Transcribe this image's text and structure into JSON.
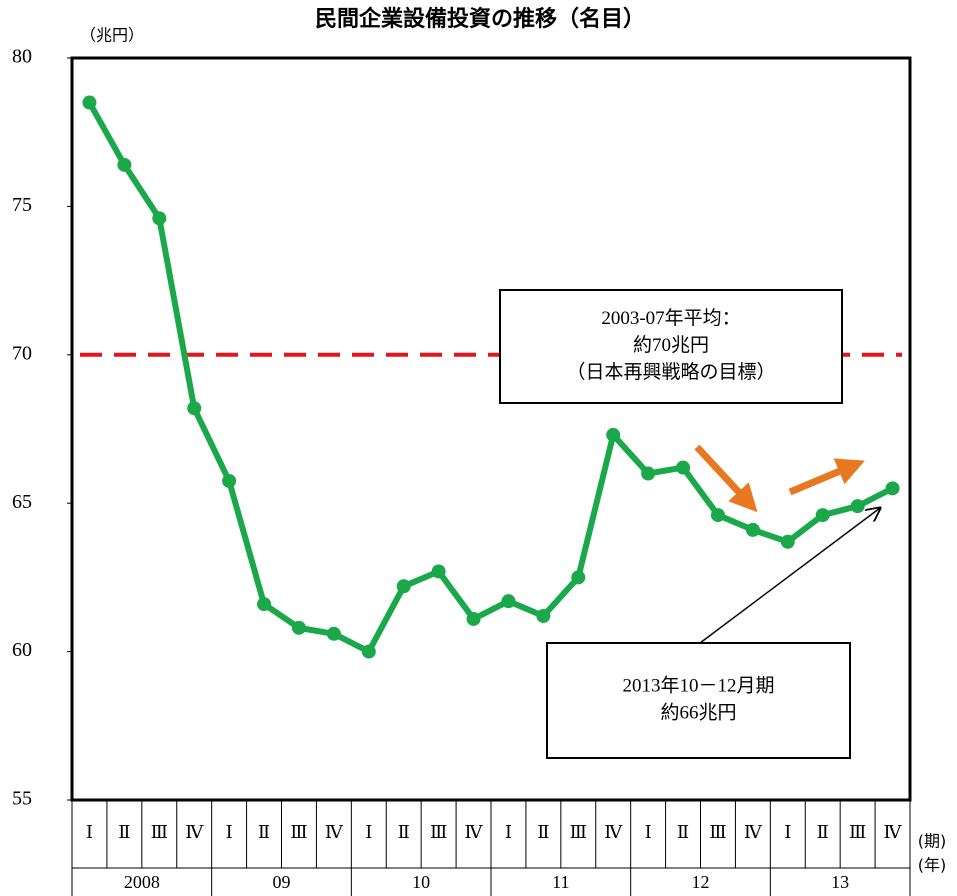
{
  "chart_data": {
    "type": "line",
    "title": "民間企業設備投資の推移（名目）",
    "y_label": "（兆円）",
    "x_label": "(期)",
    "x_group_label": "(年)",
    "categories": [
      "Ⅰ",
      "Ⅱ",
      "Ⅲ",
      "Ⅳ",
      "Ⅰ",
      "Ⅱ",
      "Ⅲ",
      "Ⅳ",
      "Ⅰ",
      "Ⅱ",
      "Ⅲ",
      "Ⅳ",
      "Ⅰ",
      "Ⅱ",
      "Ⅲ",
      "Ⅳ",
      "Ⅰ",
      "Ⅱ",
      "Ⅲ",
      "Ⅳ",
      "Ⅰ",
      "Ⅱ",
      "Ⅲ",
      "Ⅳ"
    ],
    "years": [
      "2008",
      "09",
      "10",
      "11",
      "12",
      "13"
    ],
    "series": [
      {
        "name": "民間企業設備投資",
        "color": "#1aa84a",
        "values": [
          78.5,
          76.4,
          74.6,
          68.2,
          65.75,
          61.6,
          60.8,
          60.6,
          60.0,
          62.2,
          62.7,
          61.1,
          61.7,
          61.2,
          62.5,
          67.3,
          66.0,
          66.2,
          64.6,
          64.1,
          63.7,
          64.6,
          64.9,
          65.5
        ]
      }
    ],
    "ylim": [
      55,
      80
    ],
    "yticks": [
      55,
      60,
      65,
      70,
      75,
      80
    ],
    "reference_line": {
      "value": 70,
      "color": "#e8141c"
    },
    "annotations": [
      {
        "lines": [
          "2003-07年平均：",
          "約70兆円",
          "（日本再興戦略の目標）"
        ]
      },
      {
        "lines": [
          "2013年10－12月期",
          "約66兆円"
        ]
      }
    ]
  }
}
